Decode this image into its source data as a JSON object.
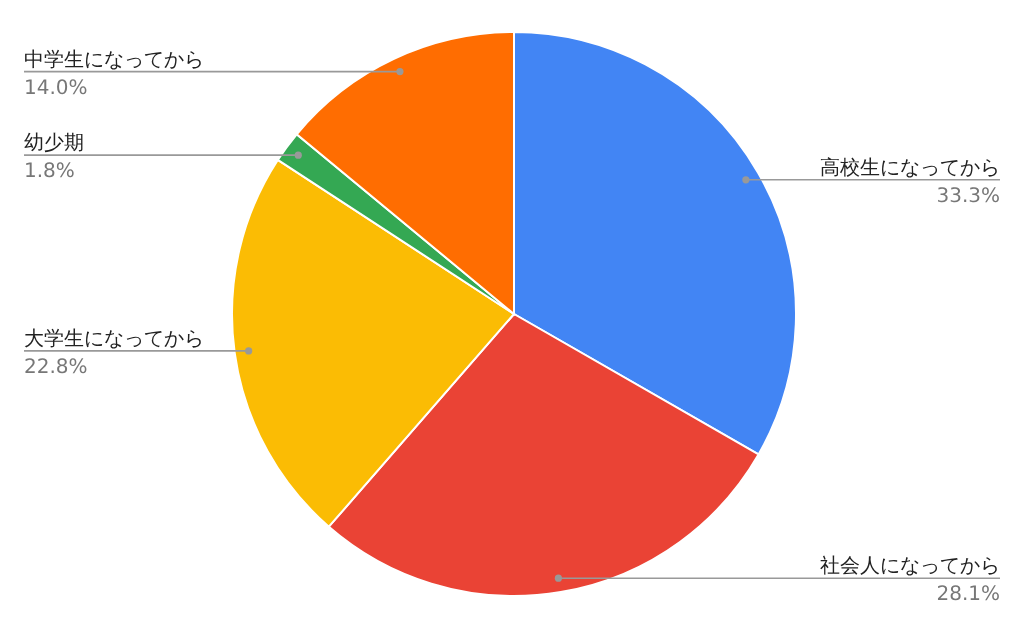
{
  "chart_data": {
    "type": "pie",
    "categories": [
      "高校生になってから",
      "社会人になってから",
      "大学生になってから",
      "幼少期",
      "中学生になってから"
    ],
    "values": [
      33.3,
      28.1,
      22.8,
      1.8,
      14.0
    ],
    "value_labels": [
      "33.3%",
      "28.1%",
      "22.8%",
      "1.8%",
      "14.0%"
    ],
    "colors": [
      "#4285f4",
      "#ea4335",
      "#fbbc04",
      "#34a853",
      "#ff6d01"
    ]
  }
}
